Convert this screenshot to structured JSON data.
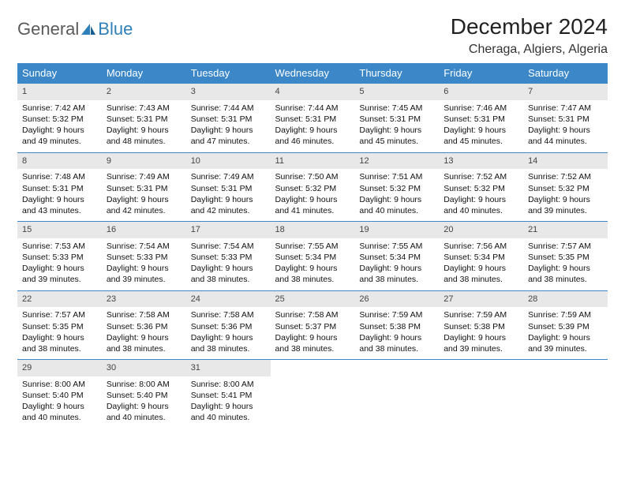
{
  "logo": {
    "general": "General",
    "blue": "Blue"
  },
  "title": "December 2024",
  "location": "Cheraga, Algiers, Algeria",
  "colors": {
    "header_bg": "#3b87c8",
    "header_text": "#ffffff",
    "daynum_bg": "#e8e8e8",
    "row_border": "#3b87c8",
    "logo_gray": "#5a5a5a",
    "logo_blue": "#2f7fb8"
  },
  "day_names": [
    "Sunday",
    "Monday",
    "Tuesday",
    "Wednesday",
    "Thursday",
    "Friday",
    "Saturday"
  ],
  "weeks": [
    [
      {
        "n": "1",
        "sr": "Sunrise: 7:42 AM",
        "ss": "Sunset: 5:32 PM",
        "d1": "Daylight: 9 hours",
        "d2": "and 49 minutes."
      },
      {
        "n": "2",
        "sr": "Sunrise: 7:43 AM",
        "ss": "Sunset: 5:31 PM",
        "d1": "Daylight: 9 hours",
        "d2": "and 48 minutes."
      },
      {
        "n": "3",
        "sr": "Sunrise: 7:44 AM",
        "ss": "Sunset: 5:31 PM",
        "d1": "Daylight: 9 hours",
        "d2": "and 47 minutes."
      },
      {
        "n": "4",
        "sr": "Sunrise: 7:44 AM",
        "ss": "Sunset: 5:31 PM",
        "d1": "Daylight: 9 hours",
        "d2": "and 46 minutes."
      },
      {
        "n": "5",
        "sr": "Sunrise: 7:45 AM",
        "ss": "Sunset: 5:31 PM",
        "d1": "Daylight: 9 hours",
        "d2": "and 45 minutes."
      },
      {
        "n": "6",
        "sr": "Sunrise: 7:46 AM",
        "ss": "Sunset: 5:31 PM",
        "d1": "Daylight: 9 hours",
        "d2": "and 45 minutes."
      },
      {
        "n": "7",
        "sr": "Sunrise: 7:47 AM",
        "ss": "Sunset: 5:31 PM",
        "d1": "Daylight: 9 hours",
        "d2": "and 44 minutes."
      }
    ],
    [
      {
        "n": "8",
        "sr": "Sunrise: 7:48 AM",
        "ss": "Sunset: 5:31 PM",
        "d1": "Daylight: 9 hours",
        "d2": "and 43 minutes."
      },
      {
        "n": "9",
        "sr": "Sunrise: 7:49 AM",
        "ss": "Sunset: 5:31 PM",
        "d1": "Daylight: 9 hours",
        "d2": "and 42 minutes."
      },
      {
        "n": "10",
        "sr": "Sunrise: 7:49 AM",
        "ss": "Sunset: 5:31 PM",
        "d1": "Daylight: 9 hours",
        "d2": "and 42 minutes."
      },
      {
        "n": "11",
        "sr": "Sunrise: 7:50 AM",
        "ss": "Sunset: 5:32 PM",
        "d1": "Daylight: 9 hours",
        "d2": "and 41 minutes."
      },
      {
        "n": "12",
        "sr": "Sunrise: 7:51 AM",
        "ss": "Sunset: 5:32 PM",
        "d1": "Daylight: 9 hours",
        "d2": "and 40 minutes."
      },
      {
        "n": "13",
        "sr": "Sunrise: 7:52 AM",
        "ss": "Sunset: 5:32 PM",
        "d1": "Daylight: 9 hours",
        "d2": "and 40 minutes."
      },
      {
        "n": "14",
        "sr": "Sunrise: 7:52 AM",
        "ss": "Sunset: 5:32 PM",
        "d1": "Daylight: 9 hours",
        "d2": "and 39 minutes."
      }
    ],
    [
      {
        "n": "15",
        "sr": "Sunrise: 7:53 AM",
        "ss": "Sunset: 5:33 PM",
        "d1": "Daylight: 9 hours",
        "d2": "and 39 minutes."
      },
      {
        "n": "16",
        "sr": "Sunrise: 7:54 AM",
        "ss": "Sunset: 5:33 PM",
        "d1": "Daylight: 9 hours",
        "d2": "and 39 minutes."
      },
      {
        "n": "17",
        "sr": "Sunrise: 7:54 AM",
        "ss": "Sunset: 5:33 PM",
        "d1": "Daylight: 9 hours",
        "d2": "and 38 minutes."
      },
      {
        "n": "18",
        "sr": "Sunrise: 7:55 AM",
        "ss": "Sunset: 5:34 PM",
        "d1": "Daylight: 9 hours",
        "d2": "and 38 minutes."
      },
      {
        "n": "19",
        "sr": "Sunrise: 7:55 AM",
        "ss": "Sunset: 5:34 PM",
        "d1": "Daylight: 9 hours",
        "d2": "and 38 minutes."
      },
      {
        "n": "20",
        "sr": "Sunrise: 7:56 AM",
        "ss": "Sunset: 5:34 PM",
        "d1": "Daylight: 9 hours",
        "d2": "and 38 minutes."
      },
      {
        "n": "21",
        "sr": "Sunrise: 7:57 AM",
        "ss": "Sunset: 5:35 PM",
        "d1": "Daylight: 9 hours",
        "d2": "and 38 minutes."
      }
    ],
    [
      {
        "n": "22",
        "sr": "Sunrise: 7:57 AM",
        "ss": "Sunset: 5:35 PM",
        "d1": "Daylight: 9 hours",
        "d2": "and 38 minutes."
      },
      {
        "n": "23",
        "sr": "Sunrise: 7:58 AM",
        "ss": "Sunset: 5:36 PM",
        "d1": "Daylight: 9 hours",
        "d2": "and 38 minutes."
      },
      {
        "n": "24",
        "sr": "Sunrise: 7:58 AM",
        "ss": "Sunset: 5:36 PM",
        "d1": "Daylight: 9 hours",
        "d2": "and 38 minutes."
      },
      {
        "n": "25",
        "sr": "Sunrise: 7:58 AM",
        "ss": "Sunset: 5:37 PM",
        "d1": "Daylight: 9 hours",
        "d2": "and 38 minutes."
      },
      {
        "n": "26",
        "sr": "Sunrise: 7:59 AM",
        "ss": "Sunset: 5:38 PM",
        "d1": "Daylight: 9 hours",
        "d2": "and 38 minutes."
      },
      {
        "n": "27",
        "sr": "Sunrise: 7:59 AM",
        "ss": "Sunset: 5:38 PM",
        "d1": "Daylight: 9 hours",
        "d2": "and 39 minutes."
      },
      {
        "n": "28",
        "sr": "Sunrise: 7:59 AM",
        "ss": "Sunset: 5:39 PM",
        "d1": "Daylight: 9 hours",
        "d2": "and 39 minutes."
      }
    ],
    [
      {
        "n": "29",
        "sr": "Sunrise: 8:00 AM",
        "ss": "Sunset: 5:40 PM",
        "d1": "Daylight: 9 hours",
        "d2": "and 40 minutes."
      },
      {
        "n": "30",
        "sr": "Sunrise: 8:00 AM",
        "ss": "Sunset: 5:40 PM",
        "d1": "Daylight: 9 hours",
        "d2": "and 40 minutes."
      },
      {
        "n": "31",
        "sr": "Sunrise: 8:00 AM",
        "ss": "Sunset: 5:41 PM",
        "d1": "Daylight: 9 hours",
        "d2": "and 40 minutes."
      },
      null,
      null,
      null,
      null
    ]
  ]
}
